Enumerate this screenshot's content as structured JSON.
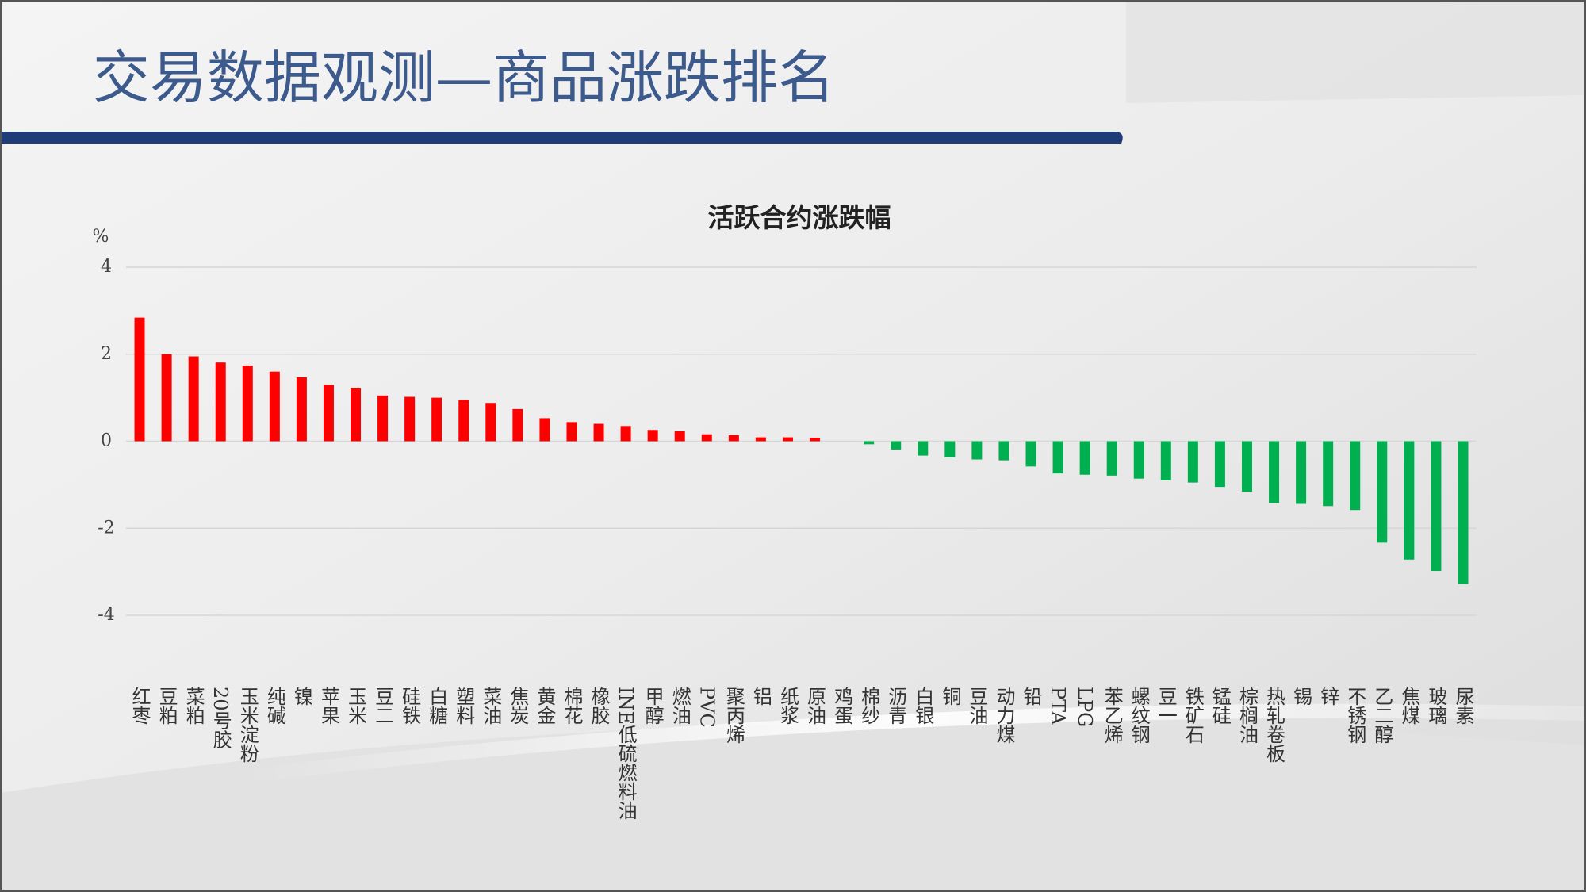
{
  "page_title": "交易数据观测—商品涨跌排名",
  "chart_data": {
    "type": "bar",
    "title": "活跃合约涨跌幅",
    "y_unit": "%",
    "categories": [
      "红枣",
      "豆粕",
      "菜粕",
      "20号胶",
      "玉米淀粉",
      "纯碱",
      "镍",
      "苹果",
      "玉米",
      "豆二",
      "硅铁",
      "白糖",
      "塑料",
      "菜油",
      "焦炭",
      "黄金",
      "棉花",
      "橡胶",
      "INE低硫燃料油",
      "甲醇",
      "燃油",
      "PVC",
      "聚丙烯",
      "铝",
      "纸浆",
      "原油",
      "鸡蛋",
      "棉纱",
      "沥青",
      "白银",
      "铜",
      "豆油",
      "动力煤",
      "铅",
      "PTA",
      "LPG",
      "苯乙烯",
      "螺纹钢",
      "豆一",
      "铁矿石",
      "锰硅",
      "棕榈油",
      "热轧卷板",
      "锡",
      "锌",
      "不锈钢",
      "乙二醇",
      "焦煤",
      "玻璃",
      "尿素"
    ],
    "values": [
      2.84,
      2.0,
      1.95,
      1.81,
      1.74,
      1.6,
      1.47,
      1.3,
      1.23,
      1.05,
      1.02,
      1.0,
      0.95,
      0.88,
      0.74,
      0.53,
      0.44,
      0.4,
      0.35,
      0.26,
      0.23,
      0.16,
      0.14,
      0.09,
      0.09,
      0.08,
      0.0,
      -0.07,
      -0.19,
      -0.33,
      -0.37,
      -0.42,
      -0.44,
      -0.58,
      -0.74,
      -0.77,
      -0.79,
      -0.86,
      -0.9,
      -0.95,
      -1.05,
      -1.16,
      -1.42,
      -1.44,
      -1.49,
      -1.58,
      -2.33,
      -2.72,
      -2.98,
      -3.28
    ],
    "positive_color": "#ff0000",
    "negative_color": "#00b050",
    "ylim": [
      -4,
      4
    ],
    "yticks": [
      -4,
      -2,
      0,
      2,
      4
    ],
    "grid": true
  }
}
